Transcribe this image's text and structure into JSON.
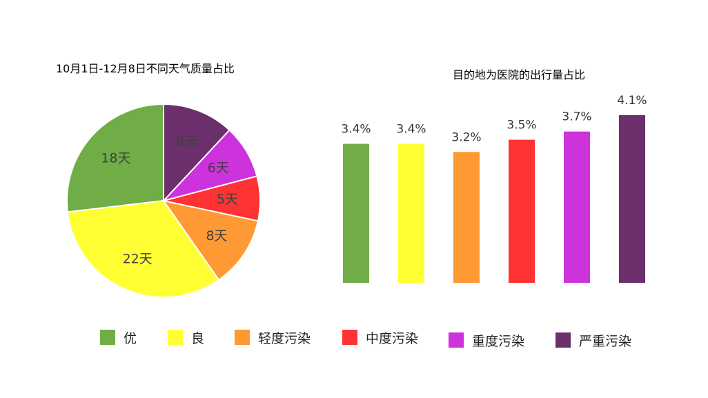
{
  "chart_data": [
    {
      "type": "pie",
      "title": "10月1日-12月8日不同天气质量占比",
      "categories": [
        "优",
        "良",
        "轻度污染",
        "中度污染",
        "重度污染",
        "严重污染"
      ],
      "values": [
        18,
        22,
        8,
        5,
        6,
        8
      ],
      "labels": [
        "18天",
        "22天",
        "8天",
        "5天",
        "6天",
        "8天"
      ],
      "colors": [
        "#70AD47",
        "#FFFF33",
        "#FF9933",
        "#FF3333",
        "#CC33DD",
        "#6B2F6B"
      ]
    },
    {
      "type": "bar",
      "title": "目的地为医院的出行量占比",
      "categories": [
        "优",
        "良",
        "轻度污染",
        "中度污染",
        "重度污染",
        "严重污染"
      ],
      "values": [
        3.4,
        3.4,
        3.2,
        3.5,
        3.7,
        4.1
      ],
      "labels": [
        "3.4%",
        "3.4%",
        "3.2%",
        "3.5%",
        "3.7%",
        "4.1%"
      ],
      "colors": [
        "#70AD47",
        "#FFFF33",
        "#FF9933",
        "#FF3333",
        "#CC33DD",
        "#6B2F6B"
      ]
    }
  ],
  "legend": [
    {
      "label": "优",
      "color": "#70AD47"
    },
    {
      "label": "良",
      "color": "#FFFF33"
    },
    {
      "label": "轻度污染",
      "color": "#FF9933"
    },
    {
      "label": "中度污染",
      "color": "#FF3333"
    },
    {
      "label": "重度污染",
      "color": "#CC33DD"
    },
    {
      "label": "严重污染",
      "color": "#6B2F6B"
    }
  ]
}
